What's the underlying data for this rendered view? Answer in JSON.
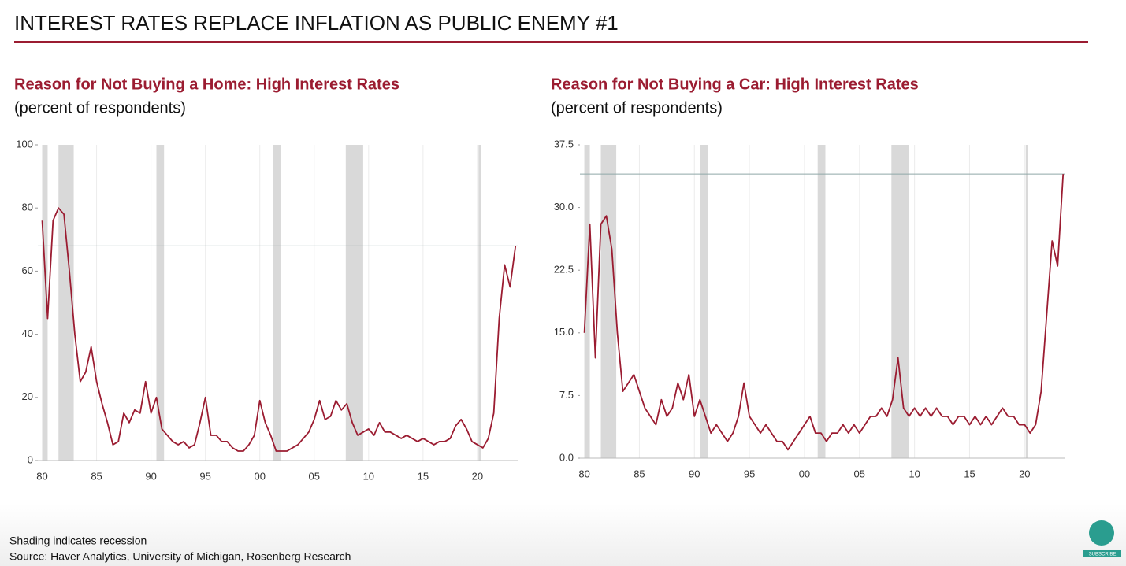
{
  "title": "INTEREST RATES REPLACE INFLATION AS PUBLIC ENEMY #1",
  "footer": {
    "note": "Shading indicates recession",
    "source": "Source: Haver Analytics, University of Michigan, Rosenberg Research"
  },
  "subscribe_label": "SUBSCRIBE",
  "chart_data": [
    {
      "type": "line",
      "title": "Reason for Not Buying a Home: High Interest Rates",
      "subtitle": "(percent of respondents)",
      "x": [
        1980.0,
        1980.5,
        1981.0,
        1981.5,
        1982.0,
        1982.5,
        1983.0,
        1983.5,
        1984.0,
        1984.5,
        1985.0,
        1985.5,
        1986.0,
        1986.5,
        1987.0,
        1987.5,
        1988.0,
        1988.5,
        1989.0,
        1989.5,
        1990.0,
        1990.5,
        1991.0,
        1991.5,
        1992.0,
        1992.5,
        1993.0,
        1993.5,
        1994.0,
        1994.5,
        1995.0,
        1995.5,
        1996.0,
        1996.5,
        1997.0,
        1997.5,
        1998.0,
        1998.5,
        1999.0,
        1999.5,
        2000.0,
        2000.5,
        2001.0,
        2001.5,
        2002.0,
        2002.5,
        2003.0,
        2003.5,
        2004.0,
        2004.5,
        2005.0,
        2005.5,
        2006.0,
        2006.5,
        2007.0,
        2007.5,
        2008.0,
        2008.5,
        2009.0,
        2009.5,
        2010.0,
        2010.5,
        2011.0,
        2011.5,
        2012.0,
        2012.5,
        2013.0,
        2013.5,
        2014.0,
        2014.5,
        2015.0,
        2015.5,
        2016.0,
        2016.5,
        2017.0,
        2017.5,
        2018.0,
        2018.5,
        2019.0,
        2019.5,
        2020.0,
        2020.5,
        2021.0,
        2021.5,
        2022.0,
        2022.5,
        2023.0,
        2023.5
      ],
      "series": [
        {
          "name": "High interest rates",
          "color": "#9b1c31",
          "values": [
            76,
            45,
            76,
            80,
            78,
            60,
            40,
            25,
            28,
            36,
            25,
            18,
            12,
            5,
            6,
            15,
            12,
            16,
            15,
            25,
            15,
            20,
            10,
            8,
            6,
            5,
            6,
            4,
            5,
            12,
            20,
            8,
            8,
            6,
            6,
            4,
            3,
            3,
            5,
            8,
            19,
            12,
            8,
            3,
            3,
            3,
            4,
            5,
            7,
            9,
            13,
            19,
            13,
            14,
            19,
            16,
            18,
            12,
            8,
            9,
            10,
            8,
            12,
            9,
            9,
            8,
            7,
            8,
            7,
            6,
            7,
            6,
            5,
            6,
            6,
            7,
            11,
            13,
            10,
            6,
            5,
            4,
            7,
            15,
            45,
            62,
            55,
            68
          ]
        }
      ],
      "recessions": [
        [
          1980.0,
          1980.5
        ],
        [
          1981.5,
          1982.9
        ],
        [
          1990.5,
          1991.2
        ],
        [
          2001.2,
          2001.9
        ],
        [
          2007.9,
          2009.5
        ],
        [
          2020.1,
          2020.3
        ]
      ],
      "reference_line": 68,
      "xlim": [
        1979.6,
        2023.7
      ],
      "ylim": [
        0,
        100
      ],
      "xticks": [
        {
          "value": 1980,
          "label": "80"
        },
        {
          "value": 1985,
          "label": "85"
        },
        {
          "value": 1990,
          "label": "90"
        },
        {
          "value": 1995,
          "label": "95"
        },
        {
          "value": 2000,
          "label": "00"
        },
        {
          "value": 2005,
          "label": "05"
        },
        {
          "value": 2010,
          "label": "10"
        },
        {
          "value": 2015,
          "label": "15"
        },
        {
          "value": 2020,
          "label": "20"
        }
      ],
      "yticks": [
        0,
        20,
        40,
        60,
        80,
        100
      ],
      "grid": true
    },
    {
      "type": "line",
      "title": "Reason for Not Buying a Car: High Interest Rates",
      "subtitle": "(percent of respondents)",
      "x": [
        1980.0,
        1980.5,
        1981.0,
        1981.5,
        1982.0,
        1982.5,
        1983.0,
        1983.5,
        1984.0,
        1984.5,
        1985.0,
        1985.5,
        1986.0,
        1986.5,
        1987.0,
        1987.5,
        1988.0,
        1988.5,
        1989.0,
        1989.5,
        1990.0,
        1990.5,
        1991.0,
        1991.5,
        1992.0,
        1992.5,
        1993.0,
        1993.5,
        1994.0,
        1994.5,
        1995.0,
        1995.5,
        1996.0,
        1996.5,
        1997.0,
        1997.5,
        1998.0,
        1998.5,
        1999.0,
        1999.5,
        2000.0,
        2000.5,
        2001.0,
        2001.5,
        2002.0,
        2002.5,
        2003.0,
        2003.5,
        2004.0,
        2004.5,
        2005.0,
        2005.5,
        2006.0,
        2006.5,
        2007.0,
        2007.5,
        2008.0,
        2008.5,
        2009.0,
        2009.5,
        2010.0,
        2010.5,
        2011.0,
        2011.5,
        2012.0,
        2012.5,
        2013.0,
        2013.5,
        2014.0,
        2014.5,
        2015.0,
        2015.5,
        2016.0,
        2016.5,
        2017.0,
        2017.5,
        2018.0,
        2018.5,
        2019.0,
        2019.5,
        2020.0,
        2020.5,
        2021.0,
        2021.5,
        2022.0,
        2022.5,
        2023.0,
        2023.5
      ],
      "series": [
        {
          "name": "High interest rates",
          "color": "#9b1c31",
          "values": [
            15,
            28,
            12,
            28,
            29,
            25,
            15,
            8,
            9,
            10,
            8,
            6,
            5,
            4,
            7,
            5,
            6,
            9,
            7,
            10,
            5,
            7,
            5,
            3,
            4,
            3,
            2,
            3,
            5,
            9,
            5,
            4,
            3,
            4,
            3,
            2,
            2,
            1,
            2,
            3,
            4,
            5,
            3,
            3,
            2,
            3,
            3,
            4,
            3,
            4,
            3,
            4,
            5,
            5,
            6,
            5,
            7,
            12,
            6,
            5,
            6,
            5,
            6,
            5,
            6,
            5,
            5,
            4,
            5,
            5,
            4,
            5,
            4,
            5,
            4,
            5,
            6,
            5,
            5,
            4,
            4,
            3,
            4,
            8,
            17,
            26,
            23,
            34
          ]
        }
      ],
      "recessions": [
        [
          1980.0,
          1980.5
        ],
        [
          1981.5,
          1982.9
        ],
        [
          1990.5,
          1991.2
        ],
        [
          2001.2,
          2001.9
        ],
        [
          2007.9,
          2009.5
        ],
        [
          2020.1,
          2020.3
        ]
      ],
      "reference_line": 34,
      "xlim": [
        1979.6,
        2023.7
      ],
      "ylim": [
        0,
        37.5
      ],
      "xticks": [
        {
          "value": 1980,
          "label": "80"
        },
        {
          "value": 1985,
          "label": "85"
        },
        {
          "value": 1990,
          "label": "90"
        },
        {
          "value": 1995,
          "label": "95"
        },
        {
          "value": 2000,
          "label": "00"
        },
        {
          "value": 2005,
          "label": "05"
        },
        {
          "value": 2010,
          "label": "10"
        },
        {
          "value": 2015,
          "label": "15"
        },
        {
          "value": 2020,
          "label": "20"
        }
      ],
      "yticks": [
        {
          "value": 0,
          "label": "0.0"
        },
        7.5,
        {
          "value": 15,
          "label": "15.0"
        },
        22.5,
        {
          "value": 30,
          "label": "30.0"
        },
        37.5
      ],
      "grid": true
    }
  ]
}
